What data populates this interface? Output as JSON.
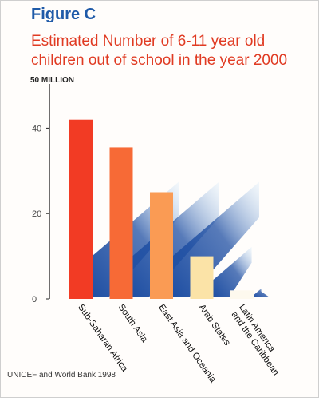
{
  "figure_label": "Figure C",
  "source": "UNICEF and World Bank 1998",
  "chart_data": {
    "type": "bar",
    "title_lines": [
      "Estimated Number of 6-11 year old",
      "children out of school in the year 2000"
    ],
    "ylabel": "",
    "ymax_label": "50 MILLION",
    "ylim": [
      0,
      50
    ],
    "yticks": [
      0,
      20,
      40
    ],
    "categories": [
      "Sub-Saharan Africa",
      "South Asia",
      "East Asia and Oceania",
      "Arab States",
      "Latin America and the Caribbean"
    ],
    "category_lines": [
      [
        "Sub-Saharan Africa"
      ],
      [
        "South Asia"
      ],
      [
        "East Asia and Oceania"
      ],
      [
        "Arab States"
      ],
      [
        "Latin America",
        "and the Caribbean"
      ]
    ],
    "values": [
      42,
      35.5,
      25,
      10,
      2
    ],
    "bar_colors": [
      "#f23b24",
      "#f76a36",
      "#fa9b54",
      "#fbe3a7",
      "#fdf9ee"
    ],
    "shadow_color": "#1f4fa3",
    "grid": false
  }
}
